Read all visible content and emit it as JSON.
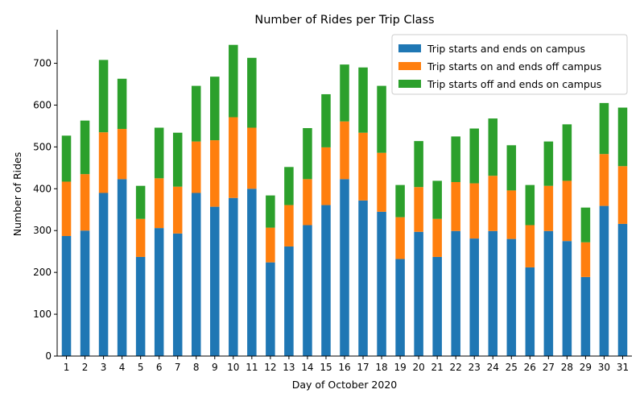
{
  "chart_data": {
    "type": "bar",
    "stacked": true,
    "title": "Number of Rides per Trip Class",
    "xlabel": "Day of October 2020",
    "ylabel": "Number of Rides",
    "ylim": [
      0,
      780
    ],
    "yticks": [
      0,
      100,
      200,
      300,
      400,
      500,
      600,
      700
    ],
    "grid": false,
    "legend_position": "top-right",
    "categories": [
      "1",
      "2",
      "3",
      "4",
      "5",
      "6",
      "7",
      "8",
      "9",
      "10",
      "11",
      "12",
      "13",
      "14",
      "15",
      "16",
      "17",
      "18",
      "19",
      "20",
      "21",
      "22",
      "23",
      "24",
      "25",
      "26",
      "27",
      "28",
      "29",
      "30",
      "31"
    ],
    "series": [
      {
        "name": "Trip starts and ends on campus",
        "color": "#1f77b4",
        "values": [
          287,
          300,
          390,
          423,
          237,
          306,
          293,
          390,
          357,
          378,
          400,
          224,
          262,
          313,
          361,
          423,
          372,
          345,
          232,
          297,
          237,
          299,
          281,
          299,
          280,
          212,
          299,
          275,
          189,
          359,
          316
        ]
      },
      {
        "name": "Trip starts on and ends off campus",
        "color": "#ff7f0e",
        "values": [
          130,
          135,
          145,
          120,
          91,
          119,
          112,
          123,
          159,
          193,
          146,
          83,
          99,
          110,
          138,
          138,
          162,
          141,
          100,
          107,
          91,
          117,
          132,
          132,
          116,
          101,
          108,
          144,
          83,
          124,
          138
        ]
      },
      {
        "name": "Trip starts off and ends on campus",
        "color": "#2ca02c",
        "values": [
          110,
          128,
          173,
          120,
          79,
          121,
          129,
          133,
          152,
          173,
          167,
          77,
          91,
          122,
          127,
          136,
          156,
          160,
          77,
          110,
          91,
          109,
          131,
          137,
          108,
          96,
          106,
          135,
          83,
          122,
          140
        ]
      }
    ]
  }
}
